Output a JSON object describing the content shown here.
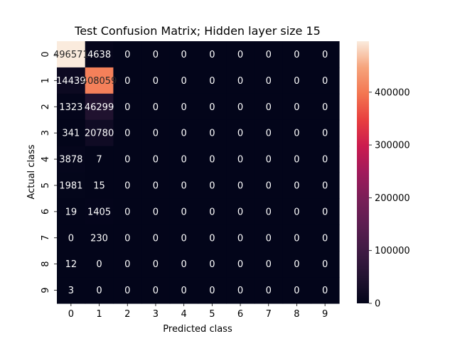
{
  "chart_data": {
    "type": "heatmap",
    "title": "Test Confusion Matrix; Hidden layer size 15",
    "xlabel": "Predicted class",
    "ylabel": "Actual class",
    "x_ticks": [
      "0",
      "1",
      "2",
      "3",
      "4",
      "5",
      "6",
      "7",
      "8",
      "9"
    ],
    "y_ticks": [
      "0",
      "1",
      "2",
      "3",
      "4",
      "5",
      "6",
      "7",
      "8",
      "9"
    ],
    "values": [
      [
        496571,
        4638,
        0,
        0,
        0,
        0,
        0,
        0,
        0,
        0
      ],
      [
        14439,
        408059,
        0,
        0,
        0,
        0,
        0,
        0,
        0,
        0
      ],
      [
        1323,
        46299,
        0,
        0,
        0,
        0,
        0,
        0,
        0,
        0
      ],
      [
        341,
        20780,
        0,
        0,
        0,
        0,
        0,
        0,
        0,
        0
      ],
      [
        3878,
        7,
        0,
        0,
        0,
        0,
        0,
        0,
        0,
        0
      ],
      [
        1981,
        15,
        0,
        0,
        0,
        0,
        0,
        0,
        0,
        0
      ],
      [
        19,
        1405,
        0,
        0,
        0,
        0,
        0,
        0,
        0,
        0
      ],
      [
        0,
        230,
        0,
        0,
        0,
        0,
        0,
        0,
        0,
        0
      ],
      [
        12,
        0,
        0,
        0,
        0,
        0,
        0,
        0,
        0,
        0
      ],
      [
        3,
        0,
        0,
        0,
        0,
        0,
        0,
        0,
        0,
        0
      ]
    ],
    "colorbar": {
      "range": [
        0,
        496571
      ],
      "ticks": [
        0,
        100000,
        200000,
        300000,
        400000
      ],
      "tick_labels": [
        "0",
        "100000",
        "200000",
        "300000",
        "400000"
      ],
      "colormap": "rocket"
    },
    "grid": false
  }
}
